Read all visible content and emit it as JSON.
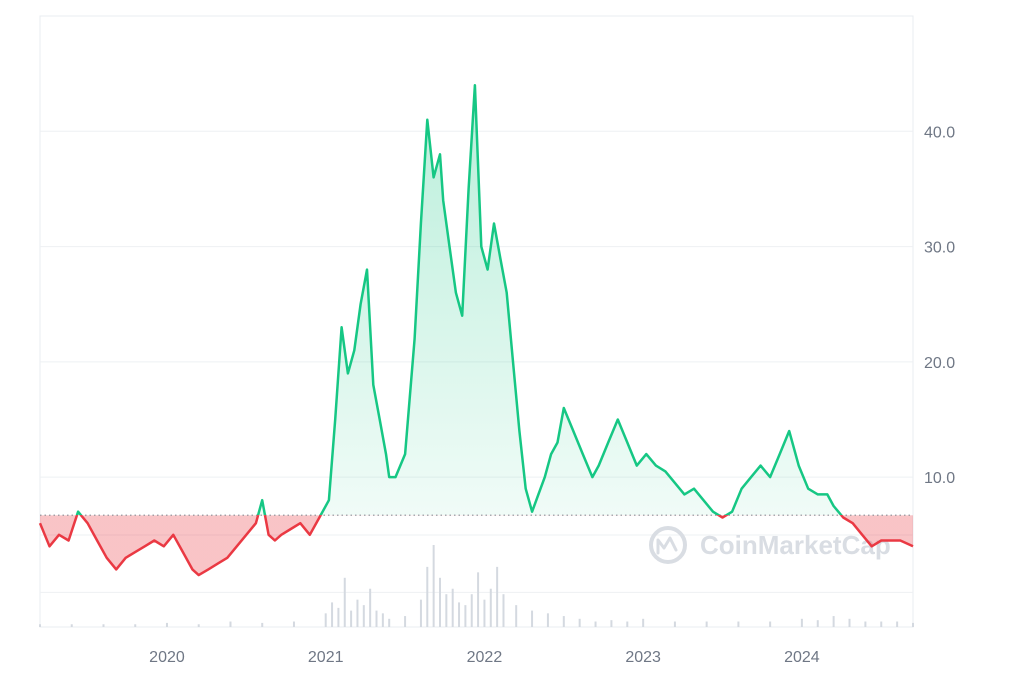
{
  "chart_data": {
    "type": "area",
    "title": "",
    "xlabel": "",
    "ylabel": "",
    "x_axis_labels": [
      "2020",
      "2021",
      "2022",
      "2023",
      "2024"
    ],
    "y_axis_labels": [
      "40.0",
      "30.0",
      "20.0",
      "10.0"
    ],
    "xlim": [
      2019.2,
      2024.7
    ],
    "ylim": [
      -3,
      50
    ],
    "baseline": 6.7,
    "baseline_style": "dotted",
    "grid": true,
    "legend": "none",
    "watermark": "CoinMarketCap",
    "colors": {
      "above": "#16c784",
      "below": "#ea3943",
      "grid": "#eef0f3",
      "volume": "#d4d9e0",
      "watermark": "#d9dde3"
    },
    "series": [
      {
        "x": [
          2019.2,
          2019.26,
          2019.32,
          2019.38,
          2019.44,
          2019.5,
          2019.56,
          2019.62,
          2019.68,
          2019.74,
          2019.8,
          2019.86,
          2019.92,
          2019.98,
          2020.04,
          2020.1,
          2020.16,
          2020.2,
          2020.26,
          2020.32,
          2020.38,
          2020.44,
          2020.5,
          2020.56,
          2020.6,
          2020.64,
          2020.68,
          2020.72,
          2020.78,
          2020.84,
          2020.9,
          2020.96,
          2021.02,
          2021.06,
          2021.1,
          2021.14,
          2021.18,
          2021.22,
          2021.26,
          2021.3,
          2021.34,
          2021.38,
          2021.4,
          2021.44,
          2021.5,
          2021.56,
          2021.6,
          2021.64,
          2021.68,
          2021.72,
          2021.74,
          2021.78,
          2021.82,
          2021.86,
          2021.9,
          2021.94,
          2021.98,
          2022.02,
          2022.06,
          2022.1,
          2022.14,
          2022.18,
          2022.22,
          2022.26,
          2022.3,
          2022.34,
          2022.38,
          2022.42,
          2022.46,
          2022.5,
          2022.56,
          2022.62,
          2022.68,
          2022.72,
          2022.78,
          2022.84,
          2022.9,
          2022.96,
          2023.02,
          2023.08,
          2023.14,
          2023.2,
          2023.26,
          2023.32,
          2023.38,
          2023.44,
          2023.5,
          2023.56,
          2023.62,
          2023.68,
          2023.74,
          2023.8,
          2023.86,
          2023.92,
          2023.98,
          2024.04,
          2024.1,
          2024.16,
          2024.2,
          2024.26,
          2024.32,
          2024.38,
          2024.44,
          2024.5,
          2024.56,
          2024.62,
          2024.7
        ],
        "y": [
          6.0,
          4.0,
          5.0,
          4.5,
          7.0,
          6.0,
          4.5,
          3.0,
          2.0,
          3.0,
          3.5,
          4.0,
          4.5,
          4.0,
          5.0,
          3.5,
          2.0,
          1.5,
          2.0,
          2.5,
          3.0,
          4.0,
          5.0,
          6.0,
          8.0,
          5.0,
          4.5,
          5.0,
          5.5,
          6.0,
          5.0,
          6.5,
          8.0,
          15.0,
          23.0,
          19.0,
          21.0,
          25.0,
          28.0,
          18.0,
          15.0,
          12.0,
          10.0,
          10.0,
          12.0,
          22.0,
          32.0,
          41.0,
          36.0,
          38.0,
          34.0,
          30.0,
          26.0,
          24.0,
          35.0,
          44.0,
          30.0,
          28.0,
          32.0,
          29.0,
          26.0,
          20.0,
          14.0,
          9.0,
          7.0,
          8.5,
          10.0,
          12.0,
          13.0,
          16.0,
          14.0,
          12.0,
          10.0,
          11.0,
          13.0,
          15.0,
          13.0,
          11.0,
          12.0,
          11.0,
          10.5,
          9.5,
          8.5,
          9.0,
          8.0,
          7.0,
          6.5,
          7.0,
          9.0,
          10.0,
          11.0,
          10.0,
          12.0,
          14.0,
          11.0,
          9.0,
          8.5,
          8.5,
          7.5,
          6.5,
          6.0,
          5.0,
          4.0,
          4.5,
          4.5,
          4.5,
          4.0
        ]
      }
    ],
    "volume": {
      "x": [
        2019.2,
        2019.4,
        2019.6,
        2019.8,
        2020.0,
        2020.2,
        2020.4,
        2020.6,
        2020.8,
        2021.0,
        2021.04,
        2021.08,
        2021.12,
        2021.16,
        2021.2,
        2021.24,
        2021.28,
        2021.32,
        2021.36,
        2021.4,
        2021.5,
        2021.6,
        2021.64,
        2021.68,
        2021.72,
        2021.76,
        2021.8,
        2021.84,
        2021.88,
        2021.92,
        2021.96,
        2022.0,
        2022.04,
        2022.08,
        2022.12,
        2022.2,
        2022.3,
        2022.4,
        2022.5,
        2022.6,
        2022.7,
        2022.8,
        2022.9,
        2023.0,
        2023.2,
        2023.4,
        2023.6,
        2023.8,
        2024.0,
        2024.1,
        2024.2,
        2024.3,
        2024.4,
        2024.5,
        2024.6,
        2024.7
      ],
      "values": [
        1,
        1,
        1,
        1,
        1.5,
        1,
        2,
        1.5,
        2,
        5,
        9,
        7,
        18,
        6,
        10,
        8,
        14,
        6,
        5,
        3,
        4,
        10,
        22,
        30,
        18,
        12,
        14,
        9,
        8,
        12,
        20,
        10,
        14,
        22,
        12,
        8,
        6,
        5,
        4,
        3,
        2,
        2.5,
        2,
        3,
        2,
        2,
        2,
        2,
        3,
        2.5,
        4,
        3,
        2,
        2,
        2,
        1.5
      ]
    }
  }
}
